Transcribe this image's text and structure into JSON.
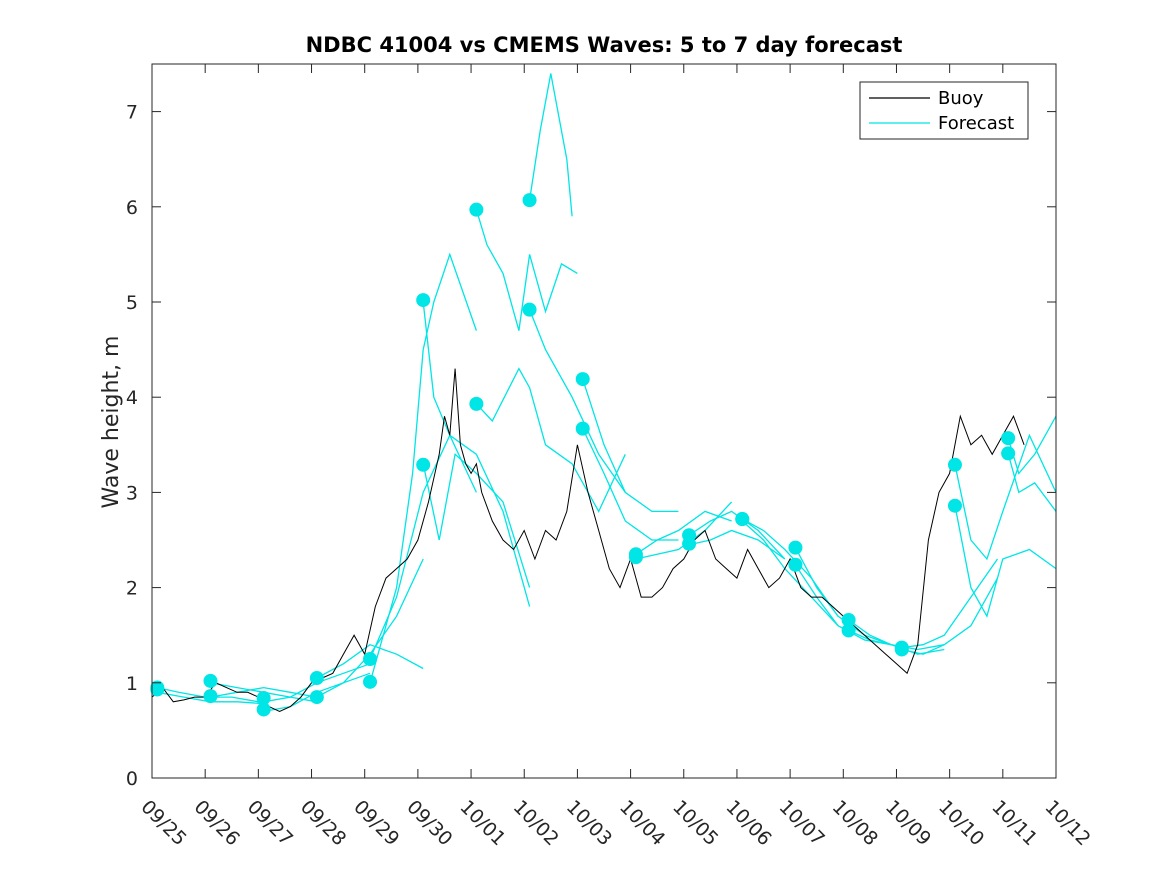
{
  "chart_data": {
    "type": "line",
    "title": "NDBC 41004 vs CMEMS Waves: 5 to 7 day forecast",
    "xlabel": "",
    "ylabel": "Wave height, m",
    "xlim": [
      0,
      17
    ],
    "ylim": [
      0,
      7.5
    ],
    "x_unit": "days since 09/25",
    "x_tick_labels": [
      "09/25",
      "09/26",
      "09/27",
      "09/28",
      "09/29",
      "09/30",
      "10/01",
      "10/02",
      "10/03",
      "10/04",
      "10/05",
      "10/06",
      "10/07",
      "10/08",
      "10/09",
      "10/10",
      "10/11",
      "10/12"
    ],
    "y_ticks": [
      0,
      1,
      2,
      3,
      4,
      5,
      6,
      7
    ],
    "legend": {
      "position": "top-right",
      "entries": [
        {
          "label": "Buoy",
          "color": "#000000"
        },
        {
          "label": "Forecast",
          "color": "#00e5e5"
        }
      ]
    },
    "colors": {
      "buoy": "#000000",
      "forecast": "#00e5e5",
      "marker": "#00e5e5"
    },
    "buoy_series": {
      "name": "Buoy",
      "x": [
        0,
        0.2,
        0.4,
        0.6,
        0.8,
        1.0,
        1.2,
        1.4,
        1.6,
        1.8,
        2.0,
        2.2,
        2.4,
        2.6,
        2.8,
        3.0,
        3.2,
        3.4,
        3.6,
        3.8,
        4.0,
        4.2,
        4.4,
        4.6,
        4.8,
        5.0,
        5.2,
        5.4,
        5.5,
        5.6,
        5.7,
        5.8,
        5.9,
        6.0,
        6.1,
        6.2,
        6.4,
        6.6,
        6.8,
        7.0,
        7.2,
        7.4,
        7.6,
        7.8,
        8.0,
        8.2,
        8.4,
        8.6,
        8.8,
        9.0,
        9.2,
        9.4,
        9.6,
        9.8,
        10.0,
        10.2,
        10.4,
        10.6,
        10.8,
        11.0,
        11.2,
        11.4,
        11.6,
        11.8,
        12.0,
        12.2,
        12.4,
        12.6,
        12.8,
        13.0,
        13.2,
        13.4,
        13.6,
        13.8,
        14.0,
        14.2,
        14.4,
        14.6,
        14.8,
        15.0,
        15.2,
        15.4,
        15.6,
        15.8,
        16.0,
        16.2,
        16.4
      ],
      "y": [
        0.85,
        0.95,
        0.8,
        0.82,
        0.85,
        0.85,
        1.0,
        0.95,
        0.9,
        0.9,
        0.85,
        0.75,
        0.7,
        0.75,
        0.85,
        1.0,
        1.05,
        1.1,
        1.3,
        1.5,
        1.3,
        1.8,
        2.1,
        2.2,
        2.3,
        2.5,
        2.9,
        3.4,
        3.8,
        3.6,
        4.3,
        3.5,
        3.3,
        3.2,
        3.3,
        3.0,
        2.7,
        2.5,
        2.4,
        2.6,
        2.3,
        2.6,
        2.5,
        2.8,
        3.5,
        3.0,
        2.6,
        2.2,
        2.0,
        2.3,
        1.9,
        1.9,
        2.0,
        2.2,
        2.3,
        2.5,
        2.6,
        2.3,
        2.2,
        2.1,
        2.4,
        2.2,
        2.0,
        2.1,
        2.3,
        2.0,
        1.9,
        1.9,
        1.8,
        1.7,
        1.6,
        1.5,
        1.4,
        1.3,
        1.2,
        1.1,
        1.4,
        2.5,
        3.0,
        3.2,
        3.8,
        3.5,
        3.6,
        3.4,
        3.6,
        3.8,
        3.5
      ]
    },
    "forecast_series": [
      {
        "name": "Forecast",
        "x": [
          0.1,
          0.5,
          1.0,
          1.5,
          2.0
        ],
        "y": [
          0.95,
          0.9,
          0.85,
          0.85,
          0.8
        ]
      },
      {
        "name": "Forecast",
        "x": [
          0.1,
          0.6,
          1.1,
          1.6,
          2.1
        ],
        "y": [
          0.9,
          0.85,
          0.8,
          0.8,
          0.78
        ]
      },
      {
        "name": "Forecast",
        "x": [
          1.1,
          1.6,
          2.1,
          2.6,
          3.1
        ],
        "y": [
          1.0,
          0.95,
          0.9,
          0.85,
          0.8
        ]
      },
      {
        "name": "Forecast",
        "x": [
          1.1,
          1.6,
          2.1,
          2.6,
          3.1
        ],
        "y": [
          0.85,
          0.9,
          0.95,
          0.9,
          0.85
        ]
      },
      {
        "name": "Forecast",
        "x": [
          2.1,
          2.6,
          3.1,
          3.6,
          4.1
        ],
        "y": [
          0.8,
          0.85,
          1.0,
          1.1,
          1.2
        ]
      },
      {
        "name": "Forecast",
        "x": [
          2.1,
          2.6,
          3.1,
          3.6,
          4.1
        ],
        "y": [
          0.7,
          0.75,
          0.9,
          1.0,
          1.1
        ]
      },
      {
        "name": "Forecast",
        "x": [
          3.1,
          3.6,
          4.1,
          4.6,
          5.1
        ],
        "y": [
          1.05,
          1.2,
          1.4,
          1.3,
          1.15
        ]
      },
      {
        "name": "Forecast",
        "x": [
          3.1,
          3.6,
          4.1,
          4.6,
          5.1
        ],
        "y": [
          0.85,
          1.0,
          1.3,
          1.7,
          2.3
        ]
      },
      {
        "name": "Forecast",
        "x": [
          4.1,
          4.6,
          5.1,
          5.6,
          6.1
        ],
        "y": [
          1.25,
          1.9,
          3.0,
          3.6,
          3.0
        ]
      },
      {
        "name": "Forecast",
        "x": [
          4.1,
          4.6,
          4.9,
          5.1,
          5.3,
          5.6,
          6.1
        ],
        "y": [
          1.0,
          2.0,
          3.2,
          4.5,
          5.0,
          5.5,
          4.7
        ]
      },
      {
        "name": "Forecast",
        "x": [
          5.1,
          5.3,
          5.6,
          6.1,
          6.6,
          7.1
        ],
        "y": [
          5.0,
          4.0,
          3.6,
          3.4,
          2.8,
          1.8
        ]
      },
      {
        "name": "Forecast",
        "x": [
          5.1,
          5.4,
          5.7,
          6.1,
          6.6,
          7.1
        ],
        "y": [
          3.3,
          2.5,
          3.4,
          3.2,
          2.9,
          2.0
        ]
      },
      {
        "name": "Forecast",
        "x": [
          6.1,
          6.3,
          6.6,
          6.9,
          7.1,
          7.4,
          7.7,
          8.0
        ],
        "y": [
          5.97,
          5.6,
          5.3,
          4.7,
          5.5,
          4.9,
          5.4,
          5.3
        ]
      },
      {
        "name": "Forecast",
        "x": [
          6.1,
          6.4,
          6.9,
          7.1,
          7.4,
          7.9,
          8.4,
          8.9
        ],
        "y": [
          3.93,
          3.75,
          4.3,
          4.1,
          3.5,
          3.3,
          2.8,
          3.4
        ]
      },
      {
        "name": "Forecast",
        "x": [
          7.1,
          7.3,
          7.5,
          7.8,
          7.9
        ],
        "y": [
          6.07,
          6.8,
          7.4,
          6.5,
          5.9
        ]
      },
      {
        "name": "Forecast",
        "x": [
          7.1,
          7.4,
          7.9,
          8.4,
          8.9
        ],
        "y": [
          4.92,
          4.5,
          4.0,
          3.4,
          3.0
        ]
      },
      {
        "name": "Forecast",
        "x": [
          8.1,
          8.5,
          8.9,
          9.4,
          9.9
        ],
        "y": [
          4.19,
          3.5,
          3.0,
          2.8,
          2.8
        ]
      },
      {
        "name": "Forecast",
        "x": [
          8.1,
          8.5,
          8.9,
          9.4,
          9.9
        ],
        "y": [
          3.67,
          3.2,
          2.7,
          2.5,
          2.5
        ]
      },
      {
        "name": "Forecast",
        "x": [
          9.1,
          9.5,
          9.9,
          10.4,
          10.9
        ],
        "y": [
          2.35,
          2.5,
          2.6,
          2.8,
          2.7
        ]
      },
      {
        "name": "Forecast",
        "x": [
          9.1,
          9.5,
          9.9,
          10.4,
          10.9
        ],
        "y": [
          2.3,
          2.35,
          2.4,
          2.6,
          2.9
        ]
      },
      {
        "name": "Forecast",
        "x": [
          10.1,
          10.5,
          10.9,
          11.4,
          11.9
        ],
        "y": [
          2.55,
          2.7,
          2.8,
          2.6,
          2.3
        ]
      },
      {
        "name": "Forecast",
        "x": [
          10.1,
          10.5,
          10.9,
          11.4,
          11.9
        ],
        "y": [
          2.45,
          2.5,
          2.6,
          2.5,
          2.3
        ]
      },
      {
        "name": "Forecast",
        "x": [
          11.1,
          11.5,
          11.9,
          12.4,
          12.9
        ],
        "y": [
          2.72,
          2.6,
          2.4,
          2.1,
          1.7
        ]
      },
      {
        "name": "Forecast",
        "x": [
          11.1,
          11.5,
          11.9,
          12.4,
          12.9
        ],
        "y": [
          2.7,
          2.5,
          2.2,
          1.9,
          1.6
        ]
      },
      {
        "name": "Forecast",
        "x": [
          12.1,
          12.5,
          12.9,
          13.4,
          13.9
        ],
        "y": [
          2.42,
          2.0,
          1.7,
          1.5,
          1.4
        ]
      },
      {
        "name": "Forecast",
        "x": [
          12.1,
          12.5,
          12.9,
          13.4,
          13.9
        ],
        "y": [
          2.24,
          1.9,
          1.6,
          1.45,
          1.4
        ]
      },
      {
        "name": "Forecast",
        "x": [
          13.1,
          13.5,
          13.9,
          14.4,
          14.9
        ],
        "y": [
          1.66,
          1.5,
          1.4,
          1.3,
          1.35
        ]
      },
      {
        "name": "Forecast",
        "x": [
          13.1,
          13.5,
          13.9,
          14.4,
          14.9
        ],
        "y": [
          1.55,
          1.45,
          1.4,
          1.35,
          1.4
        ]
      },
      {
        "name": "Forecast",
        "x": [
          14.1,
          14.5,
          14.9,
          15.4,
          15.9
        ],
        "y": [
          1.37,
          1.4,
          1.5,
          1.9,
          2.3
        ]
      },
      {
        "name": "Forecast",
        "x": [
          14.1,
          14.5,
          14.9,
          15.4,
          15.9
        ],
        "y": [
          1.35,
          1.3,
          1.4,
          1.6,
          2.1
        ]
      },
      {
        "name": "Forecast",
        "x": [
          15.1,
          15.4,
          15.7,
          16.0,
          16.5,
          17.0
        ],
        "y": [
          3.29,
          2.5,
          2.3,
          2.8,
          3.6,
          3.0
        ]
      },
      {
        "name": "Forecast",
        "x": [
          15.1,
          15.4,
          15.7,
          16.0,
          16.5,
          17.0
        ],
        "y": [
          2.86,
          2.0,
          1.7,
          2.3,
          2.4,
          2.2
        ]
      },
      {
        "name": "Forecast",
        "x": [
          16.1,
          16.3,
          16.6,
          17.0
        ],
        "y": [
          3.57,
          3.2,
          3.4,
          3.8
        ]
      },
      {
        "name": "Forecast",
        "x": [
          16.1,
          16.3,
          16.6,
          17.0
        ],
        "y": [
          3.41,
          3.0,
          3.1,
          2.8
        ]
      }
    ],
    "markers": {
      "x": [
        0.1,
        0.1,
        1.1,
        1.1,
        2.1,
        2.1,
        3.1,
        3.1,
        4.1,
        4.1,
        5.1,
        5.1,
        6.1,
        6.1,
        7.1,
        7.1,
        8.1,
        8.1,
        9.1,
        9.1,
        10.1,
        10.1,
        11.1,
        11.1,
        12.1,
        12.1,
        13.1,
        13.1,
        14.1,
        14.1,
        15.1,
        15.1,
        16.1,
        16.1
      ],
      "y": [
        0.95,
        0.93,
        1.02,
        0.86,
        0.84,
        0.72,
        1.05,
        0.85,
        1.25,
        1.01,
        5.02,
        3.29,
        5.97,
        3.93,
        6.07,
        4.92,
        4.19,
        3.67,
        2.35,
        2.32,
        2.55,
        2.46,
        2.72,
        2.72,
        2.42,
        2.24,
        1.66,
        1.55,
        1.37,
        1.35,
        3.29,
        2.86,
        3.57,
        3.41
      ]
    }
  }
}
